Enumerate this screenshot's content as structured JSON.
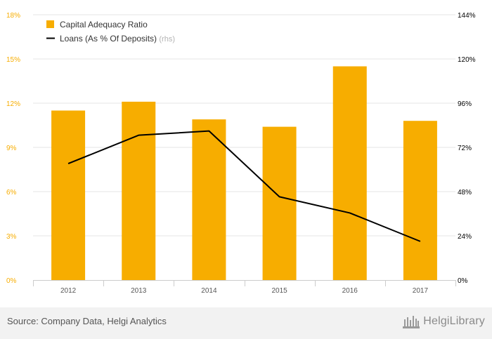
{
  "chart_data": {
    "type": "bar+line",
    "categories": [
      "2012",
      "2013",
      "2014",
      "2015",
      "2016",
      "2017"
    ],
    "series": [
      {
        "name": "Capital Adequacy Ratio",
        "type": "bar",
        "axis": "left",
        "color": "#f7ad00",
        "values": [
          11.5,
          12.1,
          10.9,
          10.4,
          14.5,
          10.8
        ]
      },
      {
        "name": "Loans (As % Of Deposits)",
        "type": "line",
        "axis": "right",
        "color": "#000000",
        "values": [
          63.2,
          78.6,
          80.9,
          45.2,
          36.4,
          21.0
        ]
      }
    ],
    "left_axis": {
      "min": 0,
      "max": 18,
      "ticks": [
        0,
        3,
        6,
        9,
        12,
        15,
        18
      ],
      "tick_labels": [
        "0%",
        "3%",
        "6%",
        "9%",
        "12%",
        "15%",
        "18%"
      ],
      "color": "#f7ad00"
    },
    "right_axis": {
      "min": 0,
      "max": 144,
      "ticks": [
        0,
        24,
        48,
        72,
        96,
        120,
        144
      ],
      "tick_labels": [
        "0%",
        "24%",
        "48%",
        "72%",
        "96%",
        "120%",
        "144%"
      ],
      "color": "#000000"
    },
    "legend": [
      {
        "label": "Capital Adequacy Ratio",
        "suffix": ""
      },
      {
        "label": "Loans (As % Of Deposits)",
        "suffix": "(rhs)"
      }
    ],
    "legend_position": "top-left",
    "grid": true
  },
  "footer": {
    "source": "Source: Company Data, Helgi Analytics",
    "logo_text": "HelgiLibrary"
  }
}
